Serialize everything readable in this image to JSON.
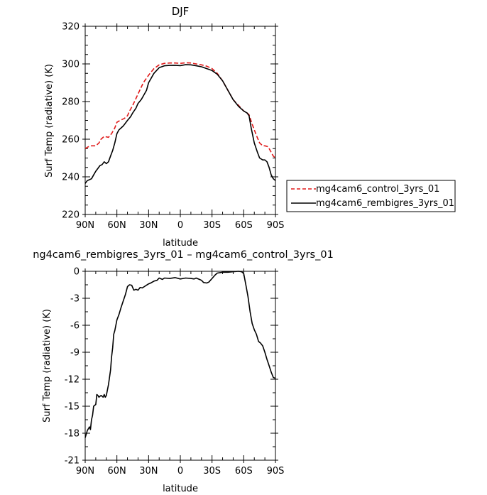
{
  "chart_data": [
    {
      "type": "line",
      "title": "DJF",
      "xlabel": "latitude",
      "ylabel": "Surf Temp (radiative) (K)",
      "x_ticks": [
        "90N",
        "60N",
        "30N",
        "0",
        "30S",
        "60S",
        "90S"
      ],
      "y_ticks": [
        "220",
        "240",
        "260",
        "280",
        "300",
        "320"
      ],
      "xlim": [
        90,
        -90
      ],
      "ylim": [
        220,
        320
      ],
      "legend": {
        "placement": "right",
        "entries": [
          "mg4cam6_control_3yrs_01",
          "mg4cam6_rembigres_3yrs_01"
        ]
      },
      "series": [
        {
          "name": "mg4cam6_control_3yrs_01",
          "style": "dashed",
          "color": "#e01818",
          "x": [
            90,
            87,
            84,
            80,
            77,
            75,
            72,
            68,
            65,
            62,
            60,
            57,
            53,
            50,
            48,
            45,
            40,
            35,
            30,
            25,
            20,
            15,
            10,
            5,
            0,
            -5,
            -10,
            -15,
            -20,
            -25,
            -30,
            -35,
            -40,
            -45,
            -50,
            -55,
            -60,
            -63,
            -65,
            -68,
            -72,
            -75,
            -78,
            -80,
            -83,
            -85,
            -88,
            -90
          ],
          "values": [
            255,
            256,
            256.5,
            256.5,
            258,
            260,
            261.5,
            261,
            263,
            266,
            269,
            270,
            271,
            272.5,
            275,
            278,
            284,
            290,
            294,
            297.5,
            299.5,
            300.3,
            300.5,
            300.5,
            300.3,
            300.6,
            300.5,
            300,
            299.5,
            298.8,
            297.5,
            295,
            291,
            286,
            281,
            278,
            275,
            274,
            273,
            268,
            262,
            258,
            256.5,
            256.5,
            256,
            254,
            251,
            250
          ]
        },
        {
          "name": "mg4cam6_rembigres_3yrs_01",
          "style": "solid",
          "color": "#000000",
          "x": [
            90,
            88,
            86,
            84,
            82,
            80,
            78,
            76,
            74,
            72,
            70,
            68,
            66,
            64,
            62,
            60,
            58,
            56,
            54,
            52,
            50,
            47,
            45,
            42,
            40,
            37,
            35,
            32,
            30,
            25,
            20,
            15,
            10,
            5,
            0,
            -5,
            -10,
            -15,
            -20,
            -25,
            -30,
            -35,
            -40,
            -45,
            -50,
            -55,
            -60,
            -63,
            -65,
            -67,
            -70,
            -73,
            -75,
            -78,
            -80,
            -82,
            -84,
            -86,
            -88,
            -90
          ],
          "values": [
            236.5,
            238,
            238.5,
            239,
            241,
            243,
            244.5,
            246,
            246.5,
            248,
            247,
            248,
            251,
            254,
            258,
            263,
            265,
            266,
            267,
            268.5,
            270,
            272,
            274,
            276.5,
            279,
            281,
            283,
            286,
            290,
            295,
            298,
            299,
            299.2,
            299.3,
            299.1,
            299.6,
            299.5,
            299,
            298.5,
            297.5,
            296.5,
            294.5,
            291,
            286,
            281,
            277.5,
            275,
            274,
            272.5,
            266,
            258,
            253,
            250,
            249,
            249,
            248,
            245,
            241,
            239,
            238
          ]
        }
      ]
    },
    {
      "type": "line",
      "title": "ng4cam6_rembigres_3yrs_01 – mg4cam6_control_3yrs_01",
      "xlabel": "latitude",
      "ylabel": "Surf Temp (radiative) (K)",
      "x_ticks": [
        "90N",
        "60N",
        "30N",
        "0",
        "30S",
        "60S",
        "90S"
      ],
      "y_ticks": [
        "0",
        "-3",
        "-6",
        "-9",
        "-12",
        "-15",
        "-18",
        "-21"
      ],
      "xlim": [
        90,
        -90
      ],
      "ylim": [
        -21,
        0
      ],
      "series": [
        {
          "style": "solid",
          "color": "#000000",
          "x": [
            90,
            88,
            86,
            85,
            84,
            83,
            82,
            80,
            79,
            78,
            77,
            75,
            73,
            72,
            71,
            70,
            69,
            68,
            66,
            65,
            64,
            63,
            62,
            61,
            60,
            58,
            56,
            54,
            52,
            50,
            48,
            46,
            44,
            42,
            40,
            38,
            36,
            34,
            32,
            30,
            28,
            25,
            22,
            20,
            17,
            15,
            10,
            5,
            0,
            -5,
            -10,
            -13,
            -15,
            -18,
            -20,
            -22,
            -25,
            -27,
            -30,
            -33,
            -35,
            -40,
            -45,
            -50,
            -55,
            -58,
            -60,
            -62,
            -64,
            -66,
            -68,
            -70,
            -72,
            -74,
            -76,
            -78,
            -80,
            -82,
            -84,
            -86,
            -88,
            -90
          ],
          "values": [
            -18.5,
            -17.7,
            -17.3,
            -17.6,
            -16.5,
            -16,
            -15,
            -14.8,
            -13.7,
            -13.8,
            -14,
            -13.8,
            -14,
            -13.7,
            -14,
            -13.8,
            -13.2,
            -12.6,
            -11,
            -9.5,
            -8.5,
            -7,
            -6.6,
            -6,
            -5.4,
            -4.8,
            -4,
            -3.3,
            -2.6,
            -1.7,
            -1.5,
            -1.55,
            -2.1,
            -2.0,
            -2.1,
            -1.8,
            -1.85,
            -1.7,
            -1.55,
            -1.4,
            -1.3,
            -1.1,
            -1.0,
            -0.75,
            -0.9,
            -0.75,
            -0.8,
            -0.7,
            -0.85,
            -0.75,
            -0.8,
            -0.85,
            -0.75,
            -0.9,
            -1.0,
            -1.25,
            -1.3,
            -1.2,
            -0.8,
            -0.4,
            -0.2,
            -0.1,
            -0.1,
            -0.05,
            0,
            -0.05,
            -0.25,
            -1.5,
            -2.8,
            -4.5,
            -5.8,
            -6.5,
            -7,
            -7.8,
            -8,
            -8.3,
            -9,
            -9.8,
            -10.5,
            -11.2,
            -11.8,
            -11.9
          ]
        }
      ]
    }
  ]
}
